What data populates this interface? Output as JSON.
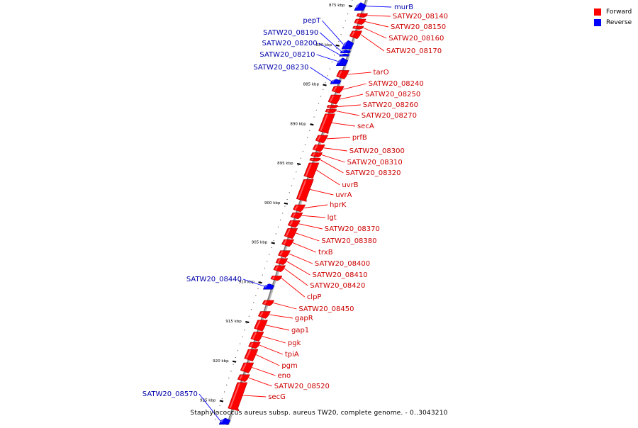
{
  "legend": {
    "items": [
      {
        "label": "Forward",
        "color": "#ff0000"
      },
      {
        "label": "Reverse",
        "color": "#0000ff"
      }
    ]
  },
  "caption": "Staphylococcus aureus subsp. aureus TW20, complete genome. - 0..3043210",
  "colors": {
    "forward": "#ff0000",
    "reverse": "#0000ff",
    "forward_label": "#cc0000",
    "reverse_label": "#0000aa",
    "backbone": "#999999"
  },
  "ticks": [
    {
      "label": "875 kbp",
      "kbp": 875
    },
    {
      "label": "880 kbp",
      "kbp": 880
    },
    {
      "label": "885 kbp",
      "kbp": 885
    },
    {
      "label": "890 kbp",
      "kbp": 890
    },
    {
      "label": "895 kbp",
      "kbp": 895
    },
    {
      "label": "900 kbp",
      "kbp": 900
    },
    {
      "label": "905 kbp",
      "kbp": 905
    },
    {
      "label": "910 kbp",
      "kbp": 910
    },
    {
      "label": "915 kbp",
      "kbp": 915
    },
    {
      "label": "920 kbp",
      "kbp": 920
    },
    {
      "label": "925 kbp",
      "kbp": 925
    }
  ],
  "forward_genes": [
    {
      "name": "SATW20_08140",
      "start_kbp": 876.0,
      "end_kbp": 876.5
    },
    {
      "name": "SATW20_08150",
      "start_kbp": 876.7,
      "end_kbp": 877.4
    },
    {
      "name": "SATW20_08160",
      "start_kbp": 877.6,
      "end_kbp": 878.0
    },
    {
      "name": "SATW20_08170",
      "start_kbp": 878.2,
      "end_kbp": 879.2
    },
    {
      "name": "tarO",
      "start_kbp": 883.2,
      "end_kbp": 884.3
    },
    {
      "name": "SATW20_08240",
      "start_kbp": 885.2,
      "end_kbp": 886.1
    },
    {
      "name": "SATW20_08250",
      "start_kbp": 886.3,
      "end_kbp": 887.5
    },
    {
      "name": "SATW20_08260",
      "start_kbp": 887.6,
      "end_kbp": 888.0
    },
    {
      "name": "SATW20_08270",
      "start_kbp": 888.1,
      "end_kbp": 888.6
    },
    {
      "name": "secA",
      "start_kbp": 888.7,
      "end_kbp": 891.2
    },
    {
      "name": "prfB",
      "start_kbp": 891.4,
      "end_kbp": 892.4
    },
    {
      "name": "SATW20_08300",
      "start_kbp": 892.6,
      "end_kbp": 893.5
    },
    {
      "name": "SATW20_08310",
      "start_kbp": 893.6,
      "end_kbp": 894.2
    },
    {
      "name": "SATW20_08320",
      "start_kbp": 894.3,
      "end_kbp": 894.7
    },
    {
      "name": "uvrB",
      "start_kbp": 894.9,
      "end_kbp": 896.9
    },
    {
      "name": "uvrA",
      "start_kbp": 897.0,
      "end_kbp": 899.8
    },
    {
      "name": "hprK",
      "start_kbp": 900.2,
      "end_kbp": 901.1
    },
    {
      "name": "lgt",
      "start_kbp": 901.2,
      "end_kbp": 902.0
    },
    {
      "name": "SATW20_08370",
      "start_kbp": 902.2,
      "end_kbp": 903.1
    },
    {
      "name": "SATW20_08380",
      "start_kbp": 903.2,
      "end_kbp": 904.5
    },
    {
      "name": "trxB",
      "start_kbp": 904.6,
      "end_kbp": 905.5
    },
    {
      "name": "SATW20_08400",
      "start_kbp": 906.0,
      "end_kbp": 906.9
    },
    {
      "name": "SATW20_08410",
      "start_kbp": 907.0,
      "end_kbp": 907.8
    },
    {
      "name": "SATW20_08420",
      "start_kbp": 907.9,
      "end_kbp": 908.7
    },
    {
      "name": "clpP",
      "start_kbp": 909.2,
      "end_kbp": 909.8
    },
    {
      "name": "SATW20_08450",
      "start_kbp": 912.3,
      "end_kbp": 913.0
    },
    {
      "name": "gapR",
      "start_kbp": 913.7,
      "end_kbp": 914.6
    },
    {
      "name": "gap1",
      "start_kbp": 914.8,
      "end_kbp": 916.2
    },
    {
      "name": "pgk",
      "start_kbp": 916.3,
      "end_kbp": 917.5
    },
    {
      "name": "tpiA",
      "start_kbp": 917.6,
      "end_kbp": 918.4
    },
    {
      "name": "pgm",
      "start_kbp": 918.5,
      "end_kbp": 920.0
    },
    {
      "name": "eno",
      "start_kbp": 920.2,
      "end_kbp": 921.5
    },
    {
      "name": "SATW20_08520",
      "start_kbp": 921.7,
      "end_kbp": 922.6
    },
    {
      "name": "secG",
      "start_kbp": 922.7,
      "end_kbp": 926.3
    }
  ],
  "forward_labels": [
    "SATW20_08140",
    "SATW20_08150",
    "SATW20_08160",
    "SATW20_08170",
    "tarO",
    "SATW20_08240",
    "SATW20_08250",
    "SATW20_08260",
    "SATW20_08270",
    "secA",
    "prfB",
    "SATW20_08300",
    "SATW20_08310",
    "SATW20_08320",
    "uvrB",
    "uvrA",
    "hprK",
    "lgt",
    "SATW20_08370",
    "SATW20_08380",
    "trxB",
    "SATW20_08400",
    "SATW20_08410",
    "SATW20_08420",
    "clpP",
    "SATW20_08450",
    "gapR",
    "gap1",
    "pgk",
    "tpiA",
    "pgm",
    "eno",
    "SATW20_08520",
    "secG"
  ],
  "reverse_genes": [
    {
      "name": "murB",
      "start_kbp": 874.6,
      "end_kbp": 875.6
    },
    {
      "name": "pepT",
      "start_kbp": 879.4,
      "end_kbp": 880.5
    },
    {
      "name": "SATW20_08190",
      "start_kbp": 880.6,
      "end_kbp": 881.0
    },
    {
      "name": "SATW20_08200",
      "start_kbp": 881.1,
      "end_kbp": 881.4
    },
    {
      "name": "SATW20_08210",
      "start_kbp": 881.6,
      "end_kbp": 882.6
    },
    {
      "name": "SATW20_08230",
      "start_kbp": 884.3,
      "end_kbp": 884.9
    },
    {
      "name": "SATW20_08440",
      "start_kbp": 910.2,
      "end_kbp": 910.9
    },
    {
      "name": "SATW20_08570",
      "start_kbp": 927.2,
      "end_kbp": 928.0
    }
  ],
  "reverse_labels": [
    "murB",
    "pepT",
    "SATW20_08190",
    "SATW20_08200",
    "SATW20_08210",
    "SATW20_08230",
    "SATW20_08440",
    "SATW20_08570"
  ]
}
